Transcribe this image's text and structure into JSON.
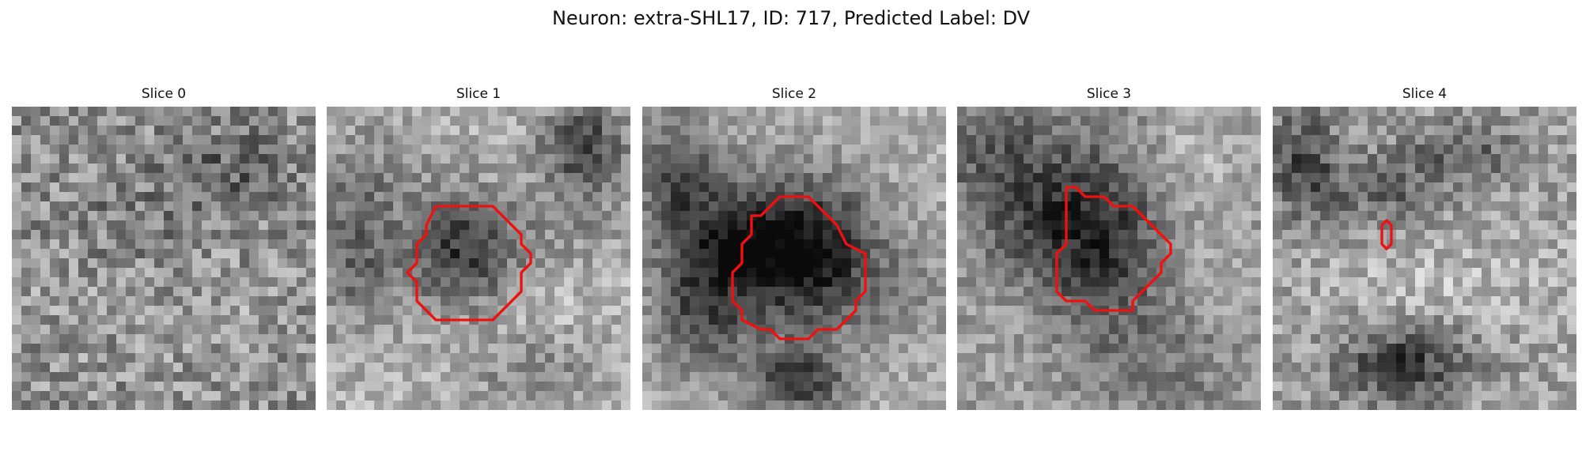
{
  "figure": {
    "title": "Neuron: extra-SHL17, ID: 717, Predicted Label: DV"
  },
  "panels": [
    {
      "title": "Slice 0",
      "contour": false
    },
    {
      "title": "Slice 1",
      "contour": true
    },
    {
      "title": "Slice 2",
      "contour": true
    },
    {
      "title": "Slice 3",
      "contour": true
    },
    {
      "title": "Slice 4",
      "contour": true
    }
  ],
  "colors": {
    "background": "#ffffff",
    "contour": "#ee1111",
    "image_palette": "grayscale"
  }
}
